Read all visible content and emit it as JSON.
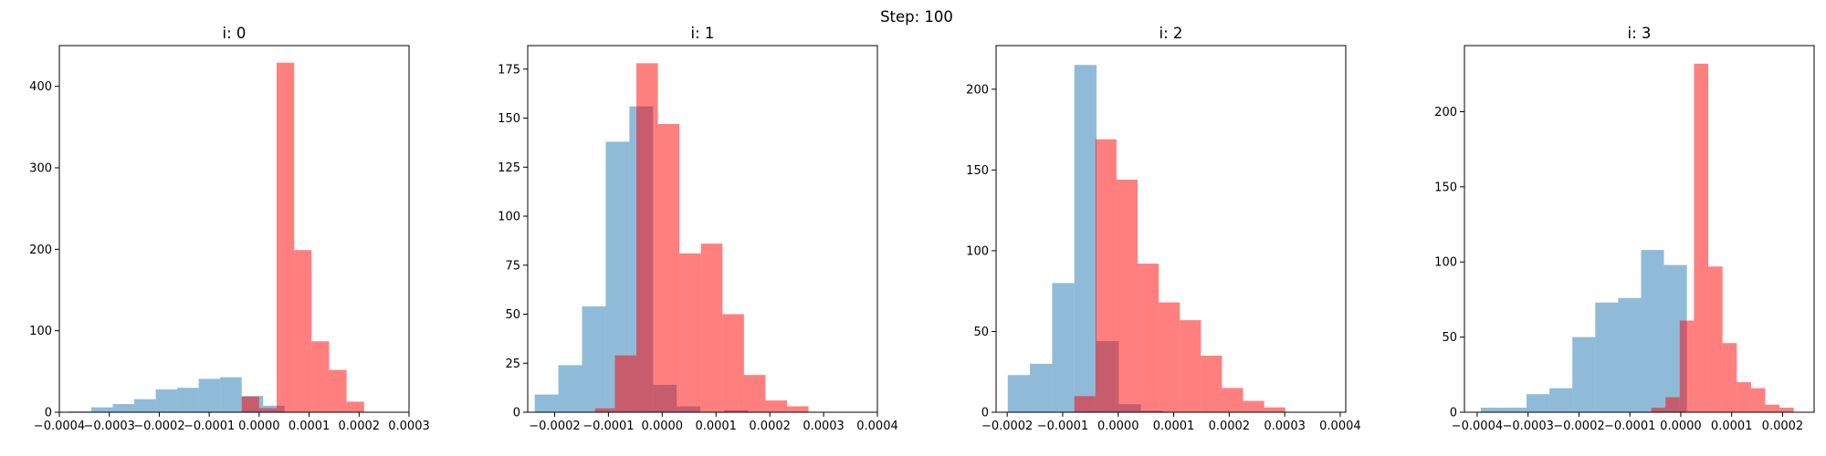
{
  "suptitle": "Step: 100",
  "colors": {
    "blue": "#1f77b4",
    "red": "#ff0000",
    "blue_alpha": 0.5,
    "red_alpha": 0.5
  },
  "chart_data": [
    {
      "type": "bar",
      "title": "i: 0",
      "xlim": [
        -0.0004,
        0.0003
      ],
      "ylim": [
        0,
        450
      ],
      "xticks": [
        -0.0004,
        -0.0003,
        -0.0002,
        -0.0001,
        0.0,
        0.0001,
        0.0002,
        0.0003
      ],
      "xtick_labels": [
        "−0.0004",
        "−0.0003",
        "−0.0002",
        "−0.0001",
        "0.0000",
        "0.0001",
        "0.0002",
        "0.0003"
      ],
      "yticks": [
        0,
        100,
        200,
        300,
        400
      ],
      "ytick_labels": [
        "0",
        "100",
        "200",
        "300",
        "400"
      ],
      "series": [
        {
          "color": "blue",
          "edges": [
            -0.000379,
            -0.000336,
            -0.000293,
            -0.00025,
            -0.000207,
            -0.000164,
            -0.000121,
            -7.8e-05,
            -3.5e-05,
            8e-06,
            5.1e-05
          ],
          "counts": [
            1,
            6,
            10,
            16,
            28,
            30,
            41,
            43,
            20,
            8
          ]
        },
        {
          "color": "red",
          "edges": [
            -3.5e-05,
            0.0,
            3.5e-05,
            7e-05,
            0.000105,
            0.00014,
            0.000175,
            0.00021,
            0.000245,
            0.00028
          ],
          "counts": [
            19,
            5,
            429,
            199,
            87,
            52,
            13,
            0,
            0
          ]
        }
      ]
    },
    {
      "type": "bar",
      "title": "i: 1",
      "xlim": [
        -0.00025,
        0.0004
      ],
      "ylim": [
        0,
        187
      ],
      "xticks": [
        -0.0002,
        -0.0001,
        0.0,
        0.0001,
        0.0002,
        0.0003,
        0.0004
      ],
      "xtick_labels": [
        "−0.0002",
        "−0.0001",
        "0.0000",
        "0.0001",
        "0.0002",
        "0.0003",
        "0.0004"
      ],
      "yticks": [
        0,
        25,
        50,
        75,
        100,
        125,
        150,
        175
      ],
      "ytick_labels": [
        "0",
        "25",
        "50",
        "75",
        "100",
        "125",
        "150",
        "175"
      ],
      "series": [
        {
          "color": "blue",
          "edges": [
            -0.000237,
            -0.000193,
            -0.000149,
            -0.000105,
            -6.1e-05,
            -1.7e-05,
            2.7e-05,
            7.1e-05,
            0.000115,
            0.000159
          ],
          "counts": [
            9,
            24,
            54,
            138,
            156,
            14,
            3,
            0,
            1
          ]
        },
        {
          "color": "red",
          "edges": [
            -0.000125,
            -8.8e-05,
            -4.8e-05,
            -8e-06,
            3.2e-05,
            7.2e-05,
            0.000112,
            0.000152,
            0.000192,
            0.000232,
            0.000272,
            0.000312,
            0.000352
          ],
          "counts": [
            2,
            29,
            178,
            147,
            81,
            86,
            50,
            19,
            6,
            3,
            0,
            0
          ]
        }
      ]
    },
    {
      "type": "bar",
      "title": "i: 2",
      "xlim": [
        -0.00022,
        0.00041
      ],
      "ylim": [
        0,
        227
      ],
      "xticks": [
        -0.0002,
        -0.0001,
        0.0,
        0.0001,
        0.0002,
        0.0003,
        0.0004
      ],
      "xtick_labels": [
        "−0.0002",
        "−0.0001",
        "0.0000",
        "0.0001",
        "0.0002",
        "0.0003",
        "0.0004"
      ],
      "yticks": [
        0,
        50,
        100,
        150,
        200
      ],
      "ytick_labels": [
        "0",
        "50",
        "100",
        "150",
        "200"
      ],
      "series": [
        {
          "color": "blue",
          "edges": [
            -0.000199,
            -0.000159,
            -0.000119,
            -7.9e-05,
            -3.9e-05,
            1e-06,
            4.1e-05,
            8.1e-05,
            0.000121
          ],
          "counts": [
            23,
            30,
            80,
            215,
            44,
            5,
            1,
            0
          ]
        },
        {
          "color": "red",
          "edges": [
            -7.9e-05,
            -4.1e-05,
            -3e-06,
            3.5e-05,
            7.3e-05,
            0.000111,
            0.000149,
            0.000187,
            0.000225,
            0.000263,
            0.000301,
            0.000339
          ],
          "counts": [
            10,
            169,
            144,
            92,
            68,
            57,
            35,
            15,
            7,
            3,
            0
          ]
        }
      ]
    },
    {
      "type": "bar",
      "title": "i: 3",
      "xlim": [
        -0.000425,
        0.000262
      ],
      "ylim": [
        0,
        244
      ],
      "xticks": [
        -0.0004,
        -0.0003,
        -0.0002,
        -0.0001,
        0.0,
        0.0001,
        0.0002
      ],
      "xtick_labels": [
        "−0.0004",
        "−0.0003",
        "−0.0002",
        "−0.0001",
        "0.0000",
        "0.0001",
        "0.0002"
      ],
      "yticks": [
        0,
        50,
        100,
        150,
        200
      ],
      "ytick_labels": [
        "0",
        "50",
        "100",
        "150",
        "200"
      ],
      "series": [
        {
          "color": "blue",
          "edges": [
            -0.000393,
            -0.000348,
            -0.000303,
            -0.000258,
            -0.000213,
            -0.000168,
            -0.000123,
            -7.8e-05,
            -3.3e-05,
            1.2e-05
          ],
          "counts": [
            3,
            3,
            12,
            16,
            50,
            73,
            76,
            108,
            98
          ]
        },
        {
          "color": "red",
          "edges": [
            -5.8e-05,
            -3e-05,
            -2e-06,
            2.6e-05,
            5.4e-05,
            8.2e-05,
            0.00011,
            0.000138,
            0.000166,
            0.000194,
            0.000222,
            0.00025
          ],
          "counts": [
            3,
            10,
            61,
            232,
            97,
            46,
            20,
            16,
            5,
            3,
            0
          ]
        }
      ]
    }
  ]
}
